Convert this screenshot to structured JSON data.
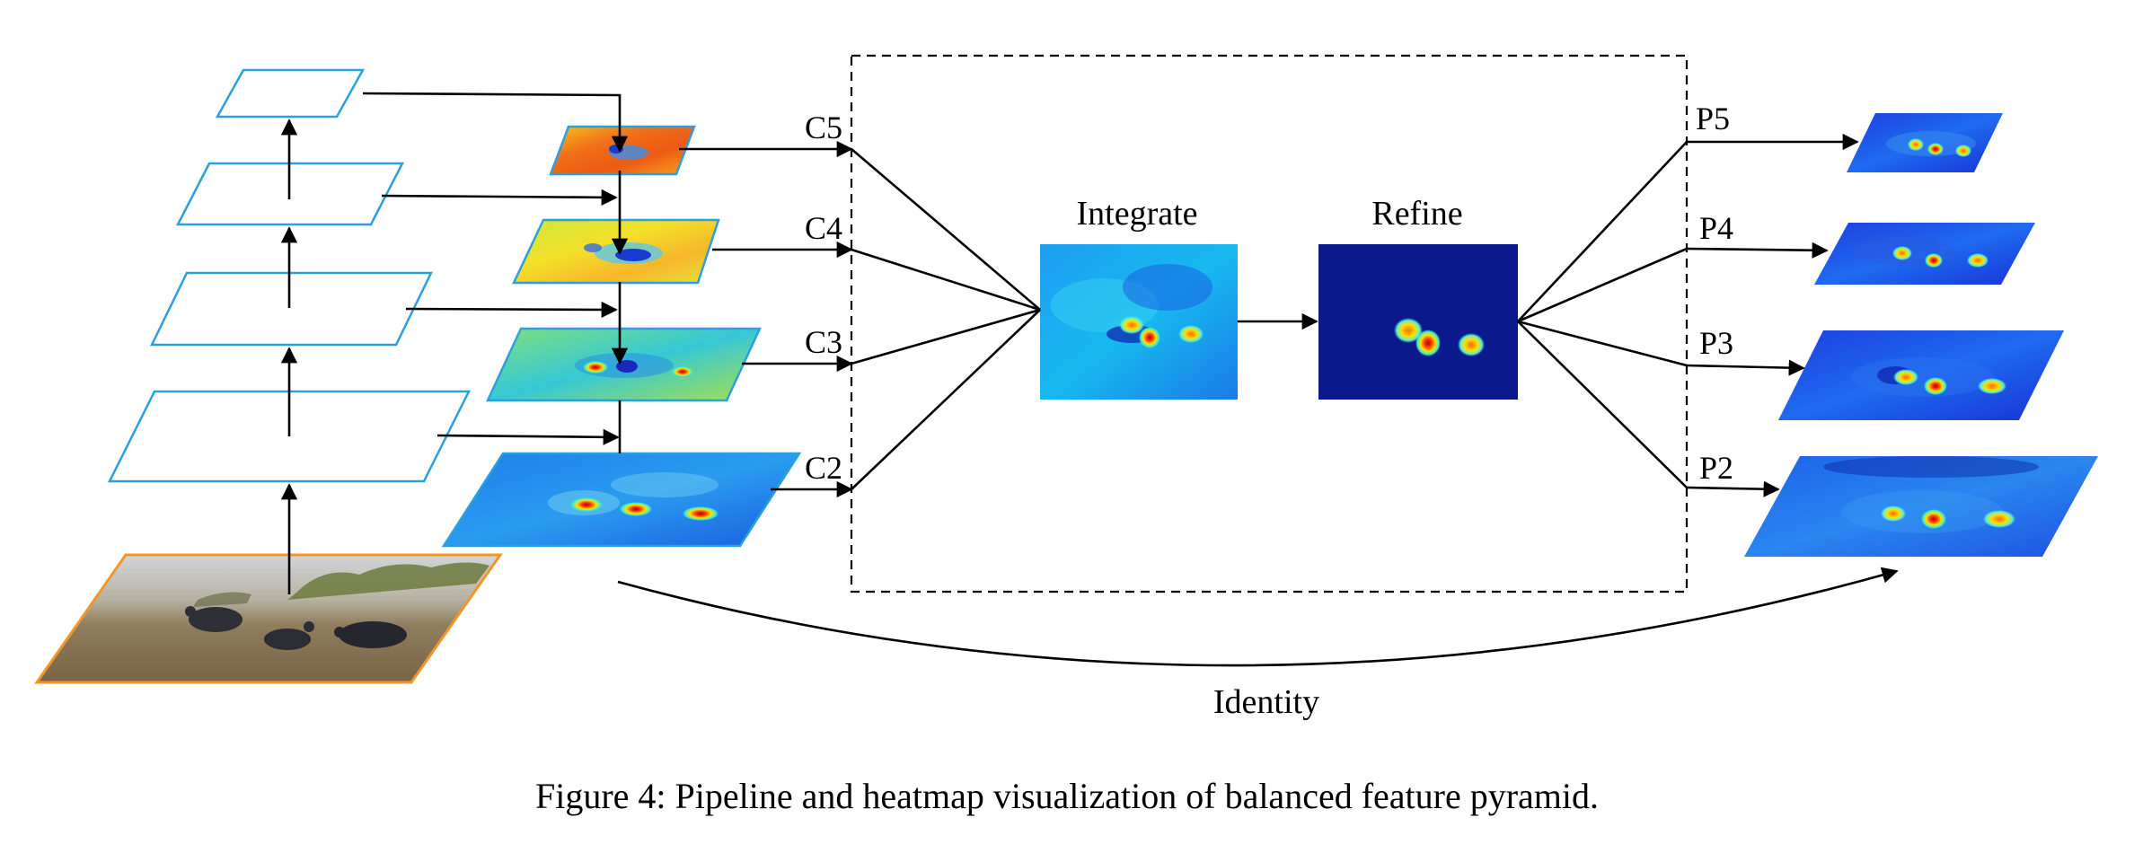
{
  "labels": {
    "c5": "C5",
    "c4": "C4",
    "c3": "C3",
    "c2": "C2",
    "p5": "P5",
    "p4": "P4",
    "p3": "P3",
    "p2": "P2",
    "integrate": "Integrate",
    "refine": "Refine",
    "identity": "Identity"
  },
  "caption": "Figure 4: Pipeline and heatmap visualization of balanced feature pyramid.",
  "colors": {
    "plane_outline": "#2aa0df",
    "photo_outline": "#f2962a",
    "heat_warm": "#f5d42a",
    "heat_cool": "#1a4fd8",
    "refine_bg": "#0a1a8c"
  }
}
